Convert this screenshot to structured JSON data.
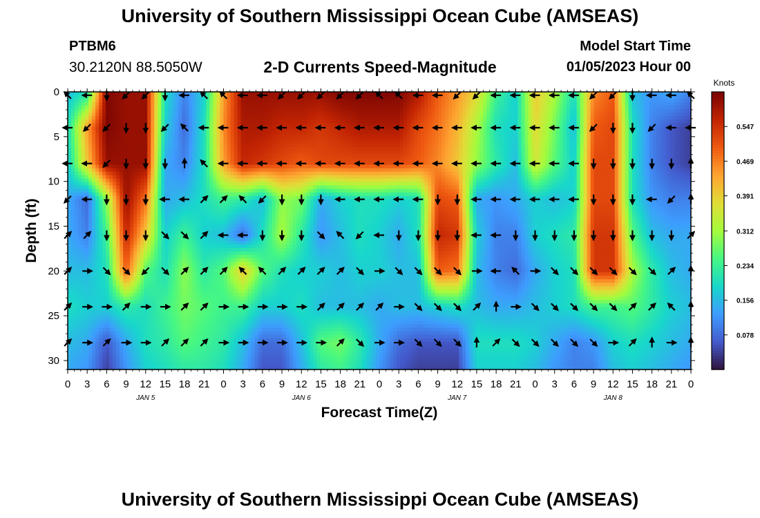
{
  "header": {
    "main_title": "University of Southern Mississippi Ocean Cube (AMSEAS)",
    "station_id": "PTBM6",
    "station_coords": "30.2120N  88.5050W",
    "plot_title": "2-D Currents Speed-Magnitude",
    "model_start_label": "Model Start Time",
    "model_start_date": "01/05/2023 Hour 00"
  },
  "footer": {
    "main_title": "University of Southern Mississippi Ocean Cube (AMSEAS)"
  },
  "chart_data": {
    "type": "heatmap",
    "title": "2-D Currents Speed-Magnitude",
    "xlabel": "Forecast Time(Z)",
    "ylabel": "Depth (ft)",
    "x_ticks": [
      "0",
      "3",
      "6",
      "9",
      "12",
      "15",
      "18",
      "21",
      "0",
      "3",
      "6",
      "9",
      "12",
      "15",
      "18",
      "21",
      "0",
      "3",
      "6",
      "9",
      "12",
      "15",
      "18",
      "21",
      "0",
      "3",
      "6",
      "9",
      "12",
      "15",
      "18",
      "21",
      "0"
    ],
    "day_labels": [
      "JAN 5",
      "JAN 6",
      "JAN 7",
      "JAN 8"
    ],
    "xlim_hours": [
      0,
      96
    ],
    "y_ticks": [
      0,
      5,
      10,
      15,
      20,
      25,
      30
    ],
    "ylim_ft": [
      0,
      31
    ],
    "colorbar": {
      "label": "Knots",
      "ticks": [
        0.078,
        0.156,
        0.234,
        0.312,
        0.391,
        0.469,
        0.547
      ],
      "range": [
        0,
        0.625
      ]
    },
    "grid_step_hours": 3,
    "depths_ft": [
      0,
      4,
      8,
      12,
      16,
      20,
      24,
      28,
      31
    ],
    "speed_knots": [
      [
        0.16,
        0.2,
        0.62,
        0.6,
        0.6,
        0.2,
        0.1,
        0.18,
        0.44,
        0.6,
        0.6,
        0.6,
        0.6,
        0.6,
        0.62,
        0.62,
        0.62,
        0.62,
        0.58,
        0.5,
        0.45,
        0.38,
        0.24,
        0.18,
        0.4,
        0.32,
        0.2,
        0.46,
        0.5,
        0.16,
        0.12,
        0.14,
        0.1
      ],
      [
        0.2,
        0.44,
        0.62,
        0.6,
        0.6,
        0.18,
        0.08,
        0.2,
        0.46,
        0.58,
        0.58,
        0.56,
        0.56,
        0.54,
        0.56,
        0.58,
        0.58,
        0.58,
        0.52,
        0.48,
        0.42,
        0.32,
        0.2,
        0.18,
        0.38,
        0.28,
        0.16,
        0.5,
        0.52,
        0.2,
        0.1,
        0.06,
        0.04
      ],
      [
        0.18,
        0.4,
        0.6,
        0.6,
        0.6,
        0.14,
        0.1,
        0.2,
        0.44,
        0.56,
        0.54,
        0.52,
        0.5,
        0.52,
        0.52,
        0.52,
        0.52,
        0.52,
        0.5,
        0.46,
        0.4,
        0.3,
        0.22,
        0.16,
        0.36,
        0.26,
        0.18,
        0.52,
        0.52,
        0.2,
        0.1,
        0.06,
        0.04
      ],
      [
        0.14,
        0.08,
        0.3,
        0.6,
        0.48,
        0.14,
        0.16,
        0.2,
        0.24,
        0.22,
        0.16,
        0.3,
        0.28,
        0.14,
        0.18,
        0.2,
        0.2,
        0.18,
        0.2,
        0.52,
        0.5,
        0.14,
        0.12,
        0.14,
        0.18,
        0.16,
        0.18,
        0.52,
        0.52,
        0.2,
        0.12,
        0.1,
        0.1
      ],
      [
        0.14,
        0.1,
        0.24,
        0.56,
        0.4,
        0.18,
        0.24,
        0.18,
        0.16,
        0.08,
        0.2,
        0.32,
        0.22,
        0.12,
        0.16,
        0.2,
        0.18,
        0.14,
        0.2,
        0.56,
        0.54,
        0.18,
        0.1,
        0.1,
        0.18,
        0.2,
        0.22,
        0.54,
        0.54,
        0.26,
        0.16,
        0.14,
        0.14
      ],
      [
        0.16,
        0.16,
        0.2,
        0.5,
        0.26,
        0.2,
        0.3,
        0.22,
        0.26,
        0.4,
        0.26,
        0.2,
        0.18,
        0.18,
        0.16,
        0.18,
        0.18,
        0.16,
        0.16,
        0.5,
        0.48,
        0.16,
        0.1,
        0.08,
        0.14,
        0.18,
        0.2,
        0.54,
        0.54,
        0.32,
        0.22,
        0.16,
        0.14
      ],
      [
        0.2,
        0.18,
        0.18,
        0.22,
        0.2,
        0.24,
        0.28,
        0.26,
        0.24,
        0.24,
        0.18,
        0.18,
        0.2,
        0.16,
        0.16,
        0.16,
        0.14,
        0.16,
        0.16,
        0.18,
        0.2,
        0.16,
        0.14,
        0.14,
        0.16,
        0.18,
        0.2,
        0.24,
        0.24,
        0.26,
        0.22,
        0.18,
        0.16
      ],
      [
        0.16,
        0.14,
        0.06,
        0.14,
        0.2,
        0.22,
        0.26,
        0.24,
        0.22,
        0.16,
        0.08,
        0.08,
        0.16,
        0.26,
        0.28,
        0.22,
        0.14,
        0.08,
        0.06,
        0.06,
        0.06,
        0.2,
        0.2,
        0.2,
        0.18,
        0.14,
        0.1,
        0.12,
        0.18,
        0.2,
        0.18,
        0.16,
        0.14
      ],
      [
        0.14,
        0.12,
        0.04,
        0.12,
        0.18,
        0.2,
        0.22,
        0.22,
        0.2,
        0.14,
        0.06,
        0.06,
        0.14,
        0.22,
        0.24,
        0.2,
        0.12,
        0.06,
        0.04,
        0.04,
        0.04,
        0.18,
        0.18,
        0.18,
        0.16,
        0.12,
        0.1,
        0.1,
        0.16,
        0.18,
        0.16,
        0.14,
        0.12
      ]
    ],
    "arrow_depths_ft": [
      0,
      4,
      8,
      12,
      16,
      20,
      24,
      28
    ],
    "arrow_direction_deg": [
      [
        315,
        270,
        180,
        225,
        225,
        180,
        270,
        315,
        315,
        270,
        270,
        225,
        225,
        225,
        225,
        225,
        315,
        315,
        270,
        270,
        225,
        225,
        270,
        270,
        270,
        270,
        270,
        225,
        225,
        180,
        270,
        270,
        315
      ],
      [
        270,
        225,
        225,
        180,
        180,
        225,
        315,
        270,
        270,
        270,
        270,
        270,
        270,
        270,
        270,
        270,
        270,
        270,
        270,
        270,
        270,
        270,
        270,
        270,
        270,
        270,
        270,
        225,
        180,
        180,
        225,
        270,
        270
      ],
      [
        270,
        270,
        225,
        180,
        180,
        180,
        0,
        315,
        270,
        270,
        270,
        270,
        270,
        270,
        270,
        270,
        270,
        270,
        270,
        270,
        270,
        270,
        270,
        270,
        270,
        270,
        270,
        180,
        180,
        180,
        180,
        180,
        0
      ],
      [
        225,
        270,
        180,
        180,
        180,
        270,
        270,
        45,
        45,
        315,
        225,
        180,
        180,
        180,
        270,
        270,
        270,
        270,
        270,
        180,
        180,
        270,
        270,
        270,
        270,
        270,
        270,
        180,
        180,
        180,
        270,
        225,
        0
      ],
      [
        45,
        45,
        180,
        180,
        180,
        135,
        135,
        45,
        270,
        270,
        180,
        180,
        180,
        135,
        315,
        225,
        270,
        180,
        180,
        180,
        180,
        270,
        270,
        180,
        180,
        180,
        180,
        180,
        180,
        180,
        180,
        180,
        45
      ],
      [
        45,
        90,
        135,
        135,
        225,
        135,
        45,
        45,
        45,
        315,
        315,
        45,
        45,
        45,
        45,
        135,
        90,
        135,
        135,
        135,
        135,
        90,
        270,
        315,
        90,
        135,
        135,
        135,
        135,
        135,
        135,
        45,
        0
      ],
      [
        45,
        90,
        90,
        45,
        90,
        90,
        45,
        45,
        90,
        90,
        90,
        90,
        90,
        45,
        45,
        45,
        45,
        90,
        135,
        135,
        135,
        45,
        0,
        90,
        135,
        135,
        135,
        135,
        135,
        45,
        45,
        315,
        0
      ],
      [
        45,
        90,
        45,
        90,
        90,
        45,
        45,
        45,
        90,
        90,
        90,
        90,
        90,
        90,
        45,
        135,
        90,
        90,
        135,
        135,
        135,
        0,
        45,
        135,
        135,
        135,
        135,
        135,
        90,
        45,
        0,
        90,
        0
      ]
    ]
  }
}
